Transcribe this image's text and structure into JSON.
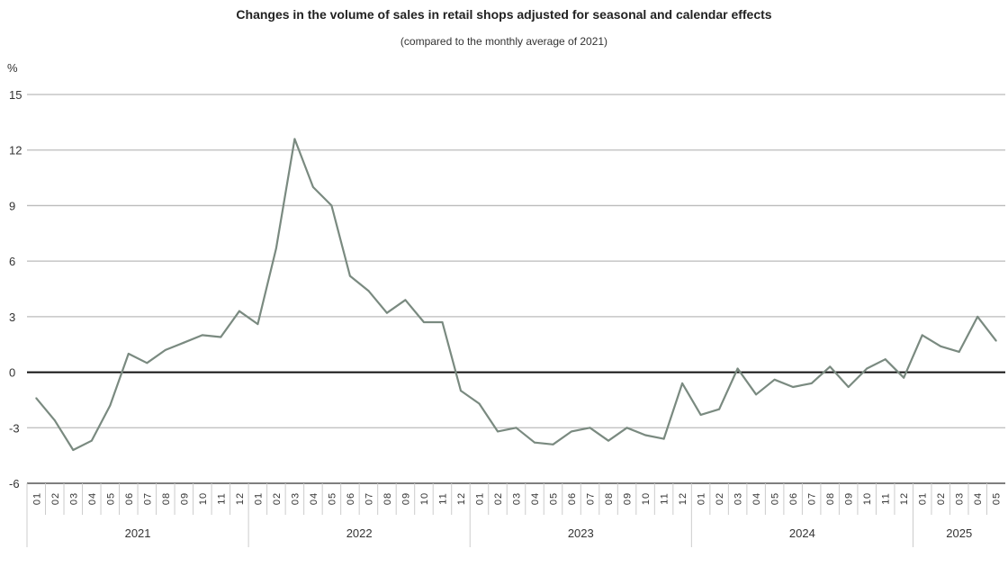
{
  "chart_data": {
    "type": "line",
    "title": "Changes in the volume of sales in retail shops adjusted for seasonal and calendar effects",
    "subtitle": "(compared to the monthly average of 2021)",
    "ylabel": "%",
    "xlabel": "",
    "ylim": [
      -6,
      15
    ],
    "yticks": [
      -6,
      -3,
      0,
      3,
      6,
      9,
      12,
      15
    ],
    "grid": true,
    "line_color": "#7a8a80",
    "years": [
      {
        "label": "2021",
        "months": [
          "01",
          "02",
          "03",
          "04",
          "05",
          "06",
          "07",
          "08",
          "09",
          "10",
          "11",
          "12"
        ]
      },
      {
        "label": "2022",
        "months": [
          "01",
          "02",
          "03",
          "04",
          "05",
          "06",
          "07",
          "08",
          "09",
          "10",
          "11",
          "12"
        ]
      },
      {
        "label": "2023",
        "months": [
          "01",
          "02",
          "03",
          "04",
          "05",
          "06",
          "07",
          "08",
          "09",
          "10",
          "11",
          "12"
        ]
      },
      {
        "label": "2024",
        "months": [
          "01",
          "02",
          "03",
          "04",
          "05",
          "06",
          "07",
          "08",
          "09",
          "10",
          "11",
          "12"
        ]
      },
      {
        "label": "2025",
        "months": [
          "01",
          "02",
          "03",
          "04",
          "05"
        ]
      }
    ],
    "values": [
      -1.4,
      -2.6,
      -4.2,
      -3.7,
      -1.8,
      1.0,
      0.5,
      1.2,
      1.6,
      2.0,
      1.9,
      3.3,
      2.6,
      6.7,
      12.6,
      10.0,
      9.0,
      5.2,
      4.4,
      3.2,
      3.9,
      2.7,
      2.7,
      -1.0,
      -1.7,
      -3.2,
      -3.0,
      -3.8,
      -3.9,
      -3.2,
      -3.0,
      -3.7,
      -3.0,
      -3.4,
      -3.6,
      -0.6,
      -2.3,
      -2.0,
      0.2,
      -1.2,
      -0.4,
      -0.8,
      -0.6,
      0.3,
      -0.8,
      0.2,
      0.7,
      -0.3,
      2.0,
      1.4,
      1.1,
      3.0,
      1.7
    ]
  }
}
